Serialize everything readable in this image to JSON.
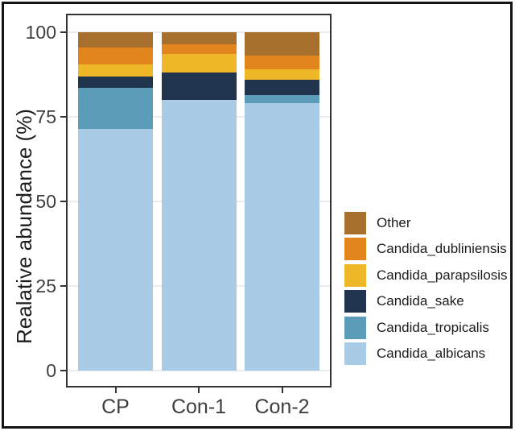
{
  "figure": {
    "background": "#ffffff",
    "outer_border_color": "#141414",
    "panel_border_color": "#333333"
  },
  "chart_data": {
    "type": "bar",
    "stacked": true,
    "title": "",
    "xlabel": "",
    "ylabel": "Realative abundance (%)",
    "ylim": [
      0,
      100
    ],
    "yticks": [
      0,
      25,
      50,
      75,
      100
    ],
    "grid": "horizontal-faint",
    "categories": [
      "CP",
      "Con-1",
      "Con-2"
    ],
    "series_bottom_to_top": [
      {
        "name": "Candida_albicans",
        "color": "#A9CBE6",
        "values": [
          71.5,
          80.0,
          79.0
        ]
      },
      {
        "name": "Candida_tropicalis",
        "color": "#5B9CB9",
        "values": [
          12.0,
          0.0,
          2.5
        ]
      },
      {
        "name": "Candida_sake",
        "color": "#20344E",
        "values": [
          3.5,
          8.0,
          4.5
        ]
      },
      {
        "name": "Candida_parapsilosis",
        "color": "#EDB728",
        "values": [
          3.5,
          5.5,
          3.0
        ]
      },
      {
        "name": "Candida_dubliniensis",
        "color": "#E3851D",
        "values": [
          5.0,
          3.0,
          4.0
        ]
      },
      {
        "name": "Other",
        "color": "#A8702E",
        "values": [
          4.5,
          3.5,
          7.0
        ]
      }
    ],
    "legend": {
      "position": "right",
      "entries_top_to_bottom": [
        "Other",
        "Candida_dubliniensis",
        "Candida_parapsilosis",
        "Candida_sake",
        "Candida_tropicalis",
        "Candida_albicans"
      ]
    }
  }
}
